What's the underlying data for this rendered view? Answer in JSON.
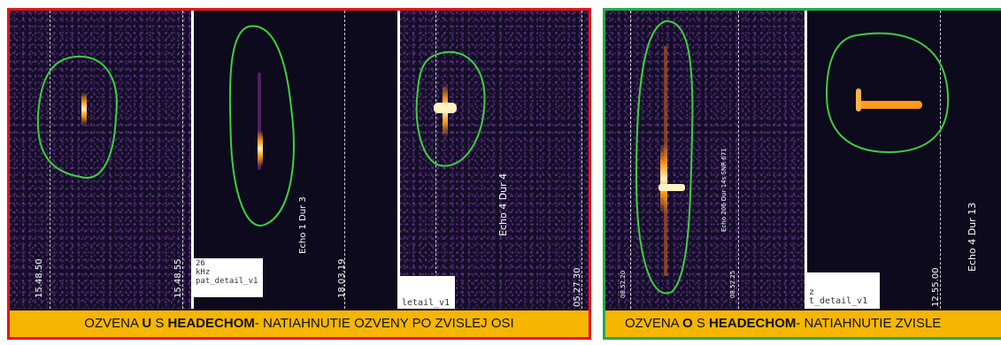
{
  "left_group": {
    "border_color": "#e8141b",
    "panels": [
      {
        "timestamp_a": "15.48.50",
        "timestamp_b": "15.48.55"
      },
      {
        "echo_label": "Echo 1 Dur 3",
        "timestamp": "18.03.19",
        "box_lines": [
          "26",
          "kHz",
          "pat_detail_v1"
        ]
      },
      {
        "echo_label": "Echo 4 Dur 4",
        "timestamp": "05.27.30",
        "box_text": "letail_v1"
      }
    ],
    "caption": {
      "part1": "OZVENA ",
      "bold1": "U",
      "part2": " S ",
      "bold2": "HEADECHOM",
      "part3": "- NATIAHNUTIE OZVENY PO ZVISLEJ OSI"
    }
  },
  "right_group": {
    "border_color": "#1fae4b",
    "panels": [
      {
        "timestamp_a": "08.52.20",
        "timestamp_b": "08.52.25",
        "echo_label": "Echo 206 Dur 14s SNR 671"
      },
      {
        "echo_label": "Echo 4 Dur 13",
        "timestamp": "12.55.00",
        "box_lines": [
          "z",
          "t_detail_v1"
        ]
      }
    ],
    "caption": {
      "part1": "OZVENA ",
      "bold1": "O",
      "part2": " S ",
      "bold2": "HEADECHOM",
      "part3": "- NATIAHNUTIE ZVISLE"
    }
  },
  "colors": {
    "outline": "#3ecf3e",
    "caption_bg": "#f6b600",
    "signal_hot": "#fff3c2",
    "signal_warm": "#ff9a1e"
  }
}
